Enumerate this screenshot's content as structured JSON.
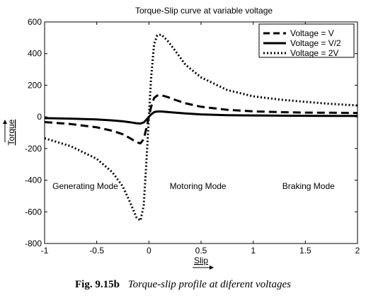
{
  "chart_data": {
    "type": "line",
    "title": "Torque-Slip curve at variable voltage",
    "xlabel": "Slip",
    "ylabel": "Torque",
    "xlim": [
      -1,
      2
    ],
    "ylim": [
      -800,
      600
    ],
    "xticks": [
      "-1",
      "-0.5",
      "0",
      "0.5",
      "1",
      "1.5",
      "2"
    ],
    "yticks": [
      "600",
      "400",
      "200",
      "0",
      "-200",
      "-400",
      "-600",
      "-800"
    ],
    "grid": false,
    "legend_position": "top-right",
    "series": [
      {
        "name": "Voltage = V",
        "line_style": "dashed",
        "x": [
          -1,
          -0.75,
          -0.5,
          -0.35,
          -0.25,
          -0.18,
          -0.12,
          -0.08,
          -0.05,
          -0.02,
          0,
          0.02,
          0.05,
          0.08,
          0.12,
          0.18,
          0.25,
          0.35,
          0.5,
          0.75,
          1,
          1.25,
          1.5,
          1.75,
          2
        ],
        "y": [
          -33,
          -45,
          -66,
          -88,
          -110,
          -135,
          -160,
          -167,
          -140,
          -60,
          0,
          60,
          120,
          135,
          137,
          125,
          108,
          86,
          64,
          45,
          35,
          30,
          27,
          26,
          25
        ]
      },
      {
        "name": "Voltage = V/2",
        "line_style": "solid",
        "x": [
          -1,
          -0.75,
          -0.5,
          -0.35,
          -0.25,
          -0.18,
          -0.12,
          -0.08,
          -0.05,
          -0.02,
          0,
          0.02,
          0.05,
          0.08,
          0.12,
          0.18,
          0.25,
          0.35,
          0.5,
          0.75,
          1,
          1.25,
          1.5,
          1.75,
          2
        ],
        "y": [
          -8,
          -11,
          -16,
          -22,
          -28,
          -34,
          -40,
          -42,
          -35,
          -15,
          0,
          15,
          30,
          34,
          34,
          31,
          27,
          22,
          16,
          11,
          9,
          8,
          7,
          6,
          6
        ]
      },
      {
        "name": "Voltage = 2V",
        "line_style": "dotted",
        "x": [
          -1,
          -0.75,
          -0.5,
          -0.35,
          -0.25,
          -0.18,
          -0.12,
          -0.08,
          -0.05,
          -0.02,
          0,
          0.02,
          0.05,
          0.08,
          0.12,
          0.18,
          0.25,
          0.35,
          0.5,
          0.75,
          1,
          1.25,
          1.5,
          1.75,
          2
        ],
        "y": [
          -135,
          -185,
          -265,
          -350,
          -440,
          -540,
          -635,
          -655,
          -560,
          -240,
          0,
          240,
          460,
          515,
          520,
          480,
          420,
          330,
          250,
          170,
          130,
          110,
          95,
          82,
          72
        ]
      }
    ],
    "annotations": [
      {
        "text": "Generating Mode",
        "x": -0.61,
        "y": -455
      },
      {
        "text": "Motoring Mode",
        "x": 0.47,
        "y": -455
      },
      {
        "text": "Braking Mode",
        "x": 1.53,
        "y": -455
      }
    ]
  },
  "caption": {
    "number": "Fig. 9.15b",
    "text": "Torque-slip profile at diferent voltages"
  }
}
